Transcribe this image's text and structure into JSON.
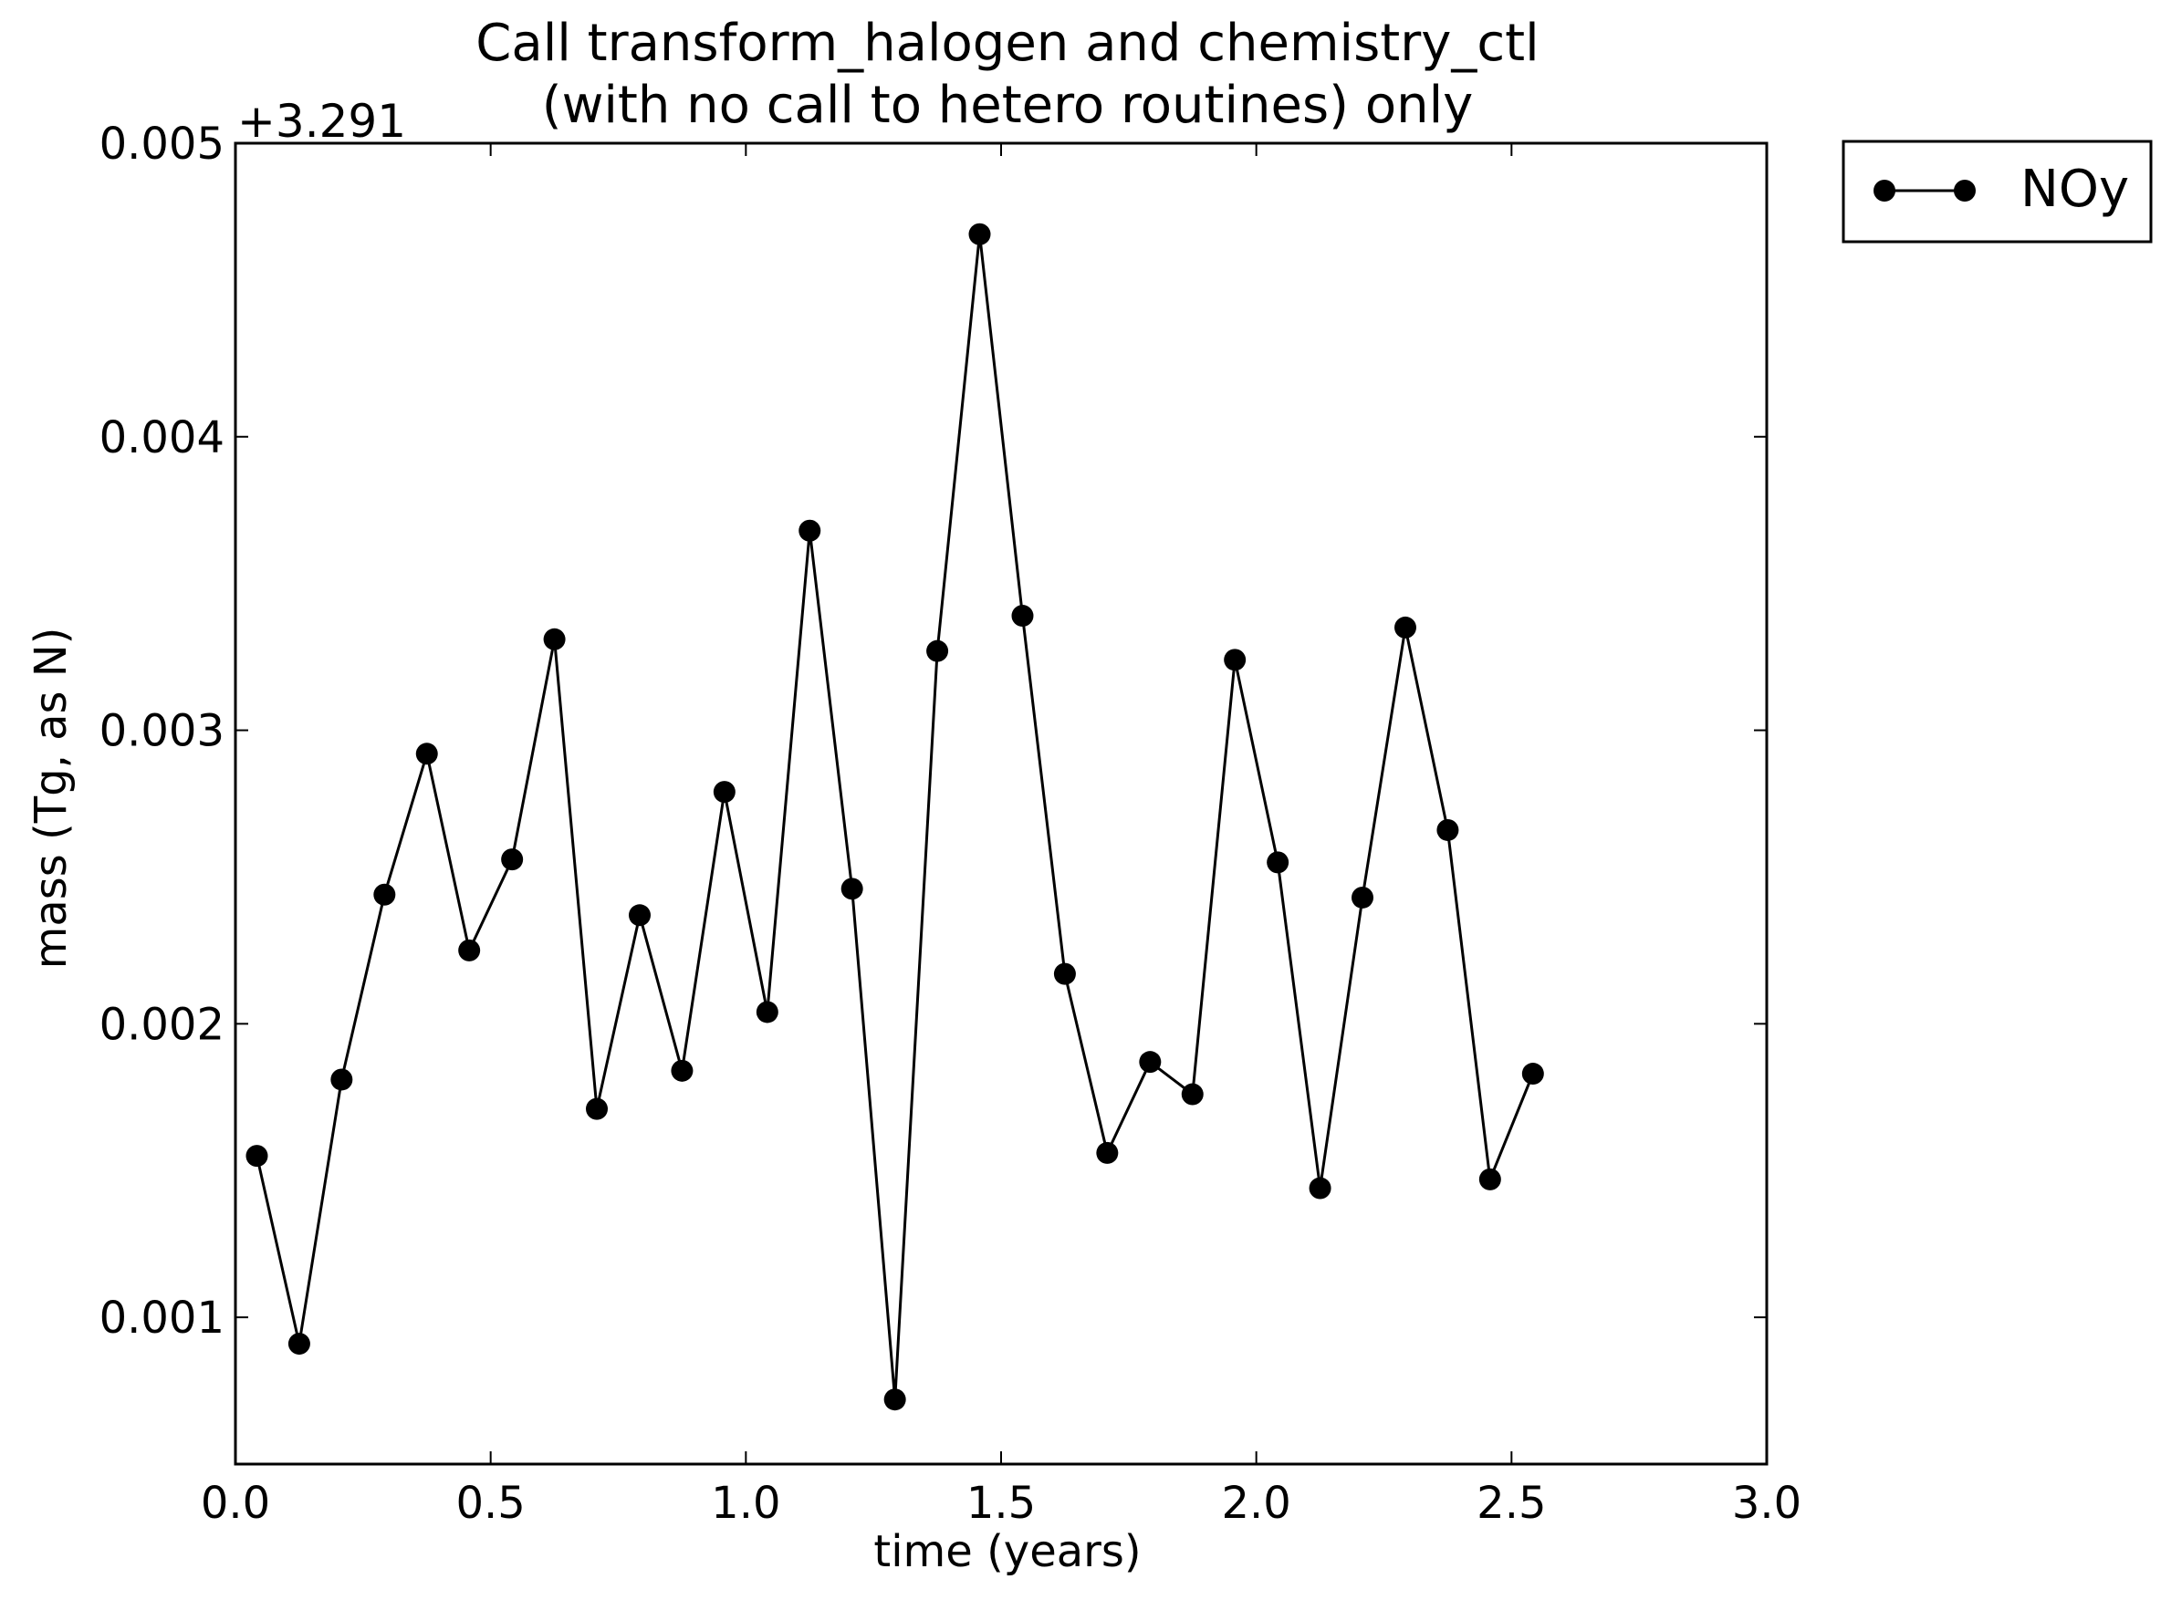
{
  "chart_data": {
    "type": "line",
    "title_line1": "Call transform_halogen and chemistry_ctl",
    "title_line2": "(with no call to hetero routines) only",
    "xlabel": "time (years)",
    "ylabel": "mass (Tg, as N)",
    "y_offset_label": "+3.291",
    "xlim": [
      0.0,
      3.0
    ],
    "ylim": [
      0.0005,
      0.005
    ],
    "xticks": [
      0.0,
      0.5,
      1.0,
      1.5,
      2.0,
      2.5,
      3.0
    ],
    "xtick_labels": [
      "0.0",
      "0.5",
      "1.0",
      "1.5",
      "2.0",
      "2.5",
      "3.0"
    ],
    "yticks": [
      0.001,
      0.002,
      0.003,
      0.004,
      0.005
    ],
    "ytick_labels": [
      "0.001",
      "0.002",
      "0.003",
      "0.004",
      "0.005"
    ],
    "grid": false,
    "legend_placement": "outside-top-right",
    "series": [
      {
        "name": "NOy",
        "color": "#000000",
        "marker": "circle",
        "x": [
          0.042,
          0.125,
          0.208,
          0.292,
          0.375,
          0.458,
          0.542,
          0.625,
          0.708,
          0.792,
          0.875,
          0.958,
          1.042,
          1.125,
          1.208,
          1.292,
          1.375,
          1.458,
          1.542,
          1.625,
          1.708,
          1.792,
          1.875,
          1.958,
          2.042,
          2.125,
          2.208,
          2.292,
          2.375,
          2.458,
          2.542
        ],
        "y": [
          0.00155,
          0.00091,
          0.00181,
          0.00244,
          0.00292,
          0.00225,
          0.00256,
          0.00331,
          0.00171,
          0.00237,
          0.00184,
          0.00279,
          0.00204,
          0.00368,
          0.00246,
          0.00072,
          0.00327,
          0.00469,
          0.00339,
          0.00217,
          0.00156,
          0.00187,
          0.00176,
          0.00324,
          0.00255,
          0.00144,
          0.00243,
          0.00335,
          0.00266,
          0.00147,
          0.00183
        ]
      }
    ]
  }
}
